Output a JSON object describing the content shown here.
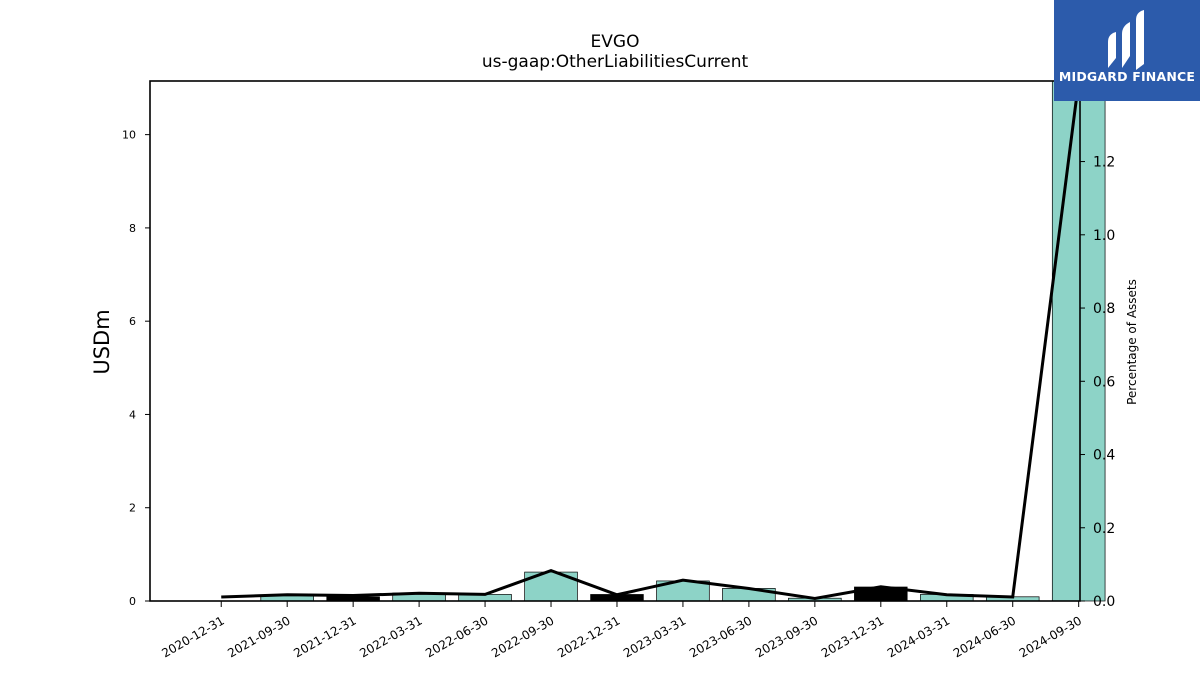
{
  "chart_data": {
    "type": "bar",
    "title": "EVGO",
    "subtitle": "us-gaap:OtherLiabilitiesCurrent",
    "ylabel": "USDm",
    "y2label": "Percentage of Assets",
    "categories": [
      "2020-12-31",
      "2021-09-30",
      "2021-12-31",
      "2022-03-31",
      "2022-06-30",
      "2022-09-30",
      "2022-12-31",
      "2023-03-31",
      "2023-06-30",
      "2023-09-30",
      "2023-12-31",
      "2024-03-31",
      "2024-06-30",
      "2024-09-30"
    ],
    "series": [
      {
        "values": [
          0.0,
          0.12,
          0.09,
          0.17,
          0.14,
          0.62,
          0.14,
          0.43,
          0.27,
          0.06,
          0.3,
          0.14,
          0.09,
          11.2
        ],
        "colors": [
          "#8dd3c7",
          "#8dd3c7",
          "#000000",
          "#8dd3c7",
          "#8dd3c7",
          "#8dd3c7",
          "#000000",
          "#8dd3c7",
          "#8dd3c7",
          "#8dd3c7",
          "#000000",
          "#8dd3c7",
          "#8dd3c7",
          "#8dd3c7"
        ]
      },
      {
        "type": "line",
        "axis": "right",
        "values": [
          0.011,
          0.017,
          0.015,
          0.021,
          0.018,
          0.083,
          0.017,
          0.057,
          0.034,
          0.007,
          0.039,
          0.017,
          0.011,
          1.42
        ]
      }
    ],
    "ylim": [
      0,
      11.15
    ],
    "y2lim": [
      0,
      1.42
    ],
    "yticks": [
      0,
      2,
      4,
      6,
      8,
      10
    ],
    "y2ticks": [
      0.0,
      0.2,
      0.4,
      0.6,
      0.8,
      1.0,
      1.2
    ],
    "grid": false,
    "legend": "none"
  },
  "logo": {
    "text": "MIDGARD FINANCE",
    "background": "#2c5bab"
  },
  "colors": {
    "bar": "#8dd3c7",
    "highlight_bar": "#000000",
    "line": "#000000"
  }
}
